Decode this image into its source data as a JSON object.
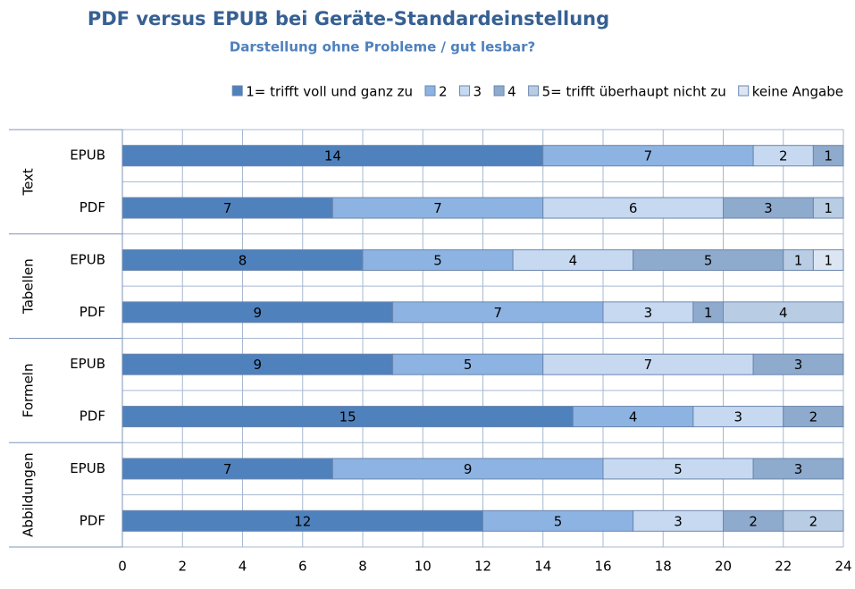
{
  "chart_data": {
    "type": "stacked-bar-horizontal",
    "title": "PDF versus EPUB bei Geräte-Standardeinstellung",
    "subtitle": "Darstellung ohne Probleme / gut lesbar?",
    "groups": [
      "Text",
      "Tabellen",
      "Formeln",
      "Abbildungen"
    ],
    "categories": [
      "EPUB",
      "PDF",
      "EPUB",
      "PDF",
      "EPUB",
      "PDF",
      "EPUB",
      "PDF"
    ],
    "series": [
      {
        "name": "1= trifft voll und ganz zu",
        "color": "#4f81bd",
        "values": [
          14,
          7,
          8,
          9,
          9,
          15,
          7,
          12
        ]
      },
      {
        "name": "2",
        "color": "#8db3e2",
        "values": [
          7,
          7,
          5,
          7,
          5,
          4,
          9,
          5
        ]
      },
      {
        "name": "3",
        "color": "#c6d9f1",
        "values": [
          2,
          6,
          4,
          3,
          7,
          3,
          5,
          3
        ]
      },
      {
        "name": "4",
        "color": "#8eaacc",
        "values": [
          1,
          3,
          5,
          1,
          3,
          2,
          3,
          2
        ]
      },
      {
        "name": "5= trifft überhaupt nicht zu",
        "color": "#b8cce4",
        "values": [
          null,
          1,
          1,
          4,
          null,
          null,
          null,
          2
        ]
      },
      {
        "name": "keine Angabe",
        "color": "#dce6f2",
        "values": [
          null,
          null,
          1,
          null,
          null,
          null,
          null,
          null
        ]
      }
    ],
    "xlim": [
      0,
      24
    ],
    "xticks": [
      0,
      2,
      4,
      6,
      8,
      10,
      12,
      14,
      16,
      18,
      20,
      22,
      24
    ],
    "grid": true,
    "legend": "top"
  }
}
